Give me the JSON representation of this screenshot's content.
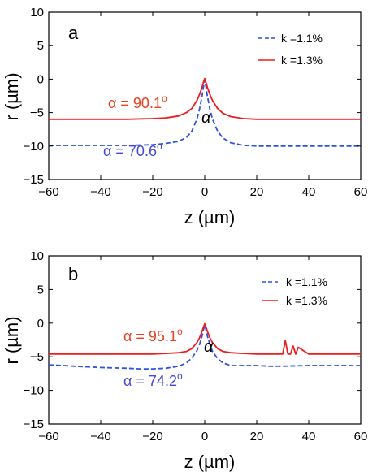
{
  "colors": {
    "red": "#ee1c1c",
    "blue": "#2f52e0",
    "axis": "#000000",
    "label_red": "#e8401f",
    "label_blue": "#4848d8"
  },
  "chart_data": [
    {
      "type": "line",
      "panel_label": "a",
      "xlabel": "z (µm)",
      "ylabel": "r (µm)",
      "xlim": [
        -60,
        60
      ],
      "ylim": [
        -15,
        10
      ],
      "xticks": [
        -60,
        -40,
        -20,
        0,
        20,
        40,
        60
      ],
      "yticks": [
        -15,
        -10,
        -5,
        0,
        5,
        10
      ],
      "xtick_labels": [
        "−60",
        "−40",
        "−20",
        "0",
        "20",
        "40",
        "60"
      ],
      "ytick_labels": [
        "−15",
        "−10",
        "−5",
        "0",
        "5",
        "10"
      ],
      "legend": {
        "placement": "top-right",
        "entries": [
          "k =1.1%",
          "k =1.3%"
        ]
      },
      "series": [
        {
          "name": "k =1.1%",
          "style": "dashed",
          "color": "#2f52e0",
          "x": [
            -60,
            -50,
            -40,
            -30,
            -20,
            -15,
            -10,
            -7,
            -5,
            -3,
            -2,
            -1,
            -0.5,
            0,
            0.5,
            1,
            2,
            3,
            5,
            7,
            10,
            15,
            20,
            30,
            40,
            50,
            60
          ],
          "y": [
            -9.9,
            -9.9,
            -9.9,
            -9.9,
            -9.8,
            -9.6,
            -9.3,
            -8.7,
            -7.8,
            -6.0,
            -4.5,
            -2.5,
            -1.2,
            -0.1,
            -1.2,
            -2.5,
            -4.5,
            -6.0,
            -7.8,
            -8.8,
            -9.5,
            -9.9,
            -10.0,
            -10.0,
            -10.0,
            -10.0,
            -10.0
          ]
        },
        {
          "name": "k =1.3%",
          "style": "solid",
          "color": "#ee1c1c",
          "x": [
            -60,
            -50,
            -40,
            -30,
            -20,
            -15,
            -10,
            -7,
            -5,
            -3,
            -2,
            -1,
            -0.5,
            0,
            0.5,
            1,
            2,
            3,
            5,
            7,
            10,
            15,
            20,
            30,
            40,
            50,
            60
          ],
          "y": [
            -6.0,
            -6.0,
            -6.0,
            -6.0,
            -5.9,
            -5.8,
            -5.5,
            -5.0,
            -4.4,
            -3.2,
            -2.3,
            -1.2,
            -0.5,
            0.1,
            -0.5,
            -1.2,
            -2.3,
            -3.2,
            -4.4,
            -5.1,
            -5.6,
            -5.9,
            -6.0,
            -6.0,
            -6.0,
            -6.0,
            -6.0
          ]
        }
      ],
      "annotations": {
        "red_prefix": "α = 90.1",
        "red_sup": "o",
        "blue_prefix": "α = 70.6",
        "blue_sup": "o",
        "alpha": "α"
      }
    },
    {
      "type": "line",
      "panel_label": "b",
      "xlabel": "z (µm)",
      "ylabel": "r (µm)",
      "xlim": [
        -60,
        60
      ],
      "ylim": [
        -15,
        10
      ],
      "xticks": [
        -60,
        -40,
        -20,
        0,
        20,
        40,
        60
      ],
      "yticks": [
        -15,
        -10,
        -5,
        0,
        5,
        10
      ],
      "xtick_labels": [
        "−60",
        "−40",
        "−20",
        "0",
        "20",
        "40",
        "60"
      ],
      "ytick_labels": [
        "−15",
        "−10",
        "−5",
        "0",
        "5",
        "10"
      ],
      "legend": {
        "placement": "top-right",
        "entries": [
          "k =1.1%",
          "k =1.3%"
        ]
      },
      "series": [
        {
          "name": "k =1.1%",
          "style": "dashed",
          "color": "#2f52e0",
          "x": [
            -60,
            -50,
            -40,
            -30,
            -25,
            -20,
            -15,
            -10,
            -7,
            -5,
            -3,
            -2,
            -1,
            -0.5,
            0,
            0.5,
            1,
            2,
            3,
            5,
            7,
            10,
            15,
            20,
            25,
            30,
            40,
            50,
            60
          ],
          "y": [
            -6.2,
            -6.4,
            -6.6,
            -6.7,
            -6.8,
            -6.8,
            -6.7,
            -6.4,
            -5.9,
            -5.2,
            -4.1,
            -3.2,
            -1.9,
            -1.0,
            -0.3,
            -1.0,
            -1.9,
            -3.2,
            -4.2,
            -5.3,
            -5.9,
            -6.3,
            -6.3,
            -6.3,
            -6.4,
            -6.4,
            -6.3,
            -6.3,
            -6.3
          ]
        },
        {
          "name": "k =1.3%",
          "style": "solid",
          "color": "#ee1c1c",
          "x": [
            -60,
            -50,
            -40,
            -30,
            -20,
            -15,
            -10,
            -7,
            -5,
            -3,
            -2,
            -1,
            -0.5,
            0,
            0.5,
            1,
            2,
            3,
            5,
            7,
            10,
            15,
            20,
            30,
            31,
            32,
            33,
            34,
            35,
            36,
            40,
            50,
            60
          ],
          "y": [
            -4.6,
            -4.6,
            -4.6,
            -4.6,
            -4.6,
            -4.5,
            -4.4,
            -4.2,
            -3.8,
            -2.9,
            -2.2,
            -1.2,
            -0.6,
            -0.1,
            -0.6,
            -1.2,
            -2.2,
            -2.9,
            -3.8,
            -4.2,
            -4.4,
            -4.5,
            -4.6,
            -4.6,
            -2.6,
            -4.6,
            -4.6,
            -3.4,
            -4.6,
            -3.6,
            -4.6,
            -4.6,
            -4.6
          ]
        }
      ],
      "annotations": {
        "red_prefix": "α = 95.1",
        "red_sup": "o",
        "blue_prefix": "α = 74.2",
        "blue_sup": "o",
        "alpha": "α"
      }
    }
  ]
}
